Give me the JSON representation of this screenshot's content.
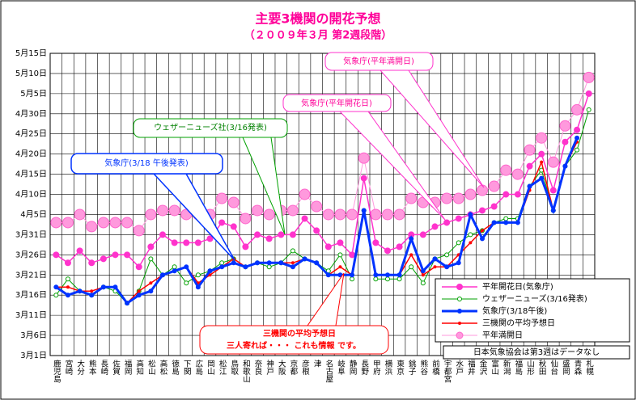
{
  "chart_data": {
    "type": "line",
    "title": "主要3機関の開花予想",
    "subtitle": "（２００９年３月 第2週段階）",
    "categories": [
      "鹿児島",
      "宮崎",
      "大分",
      "熊本",
      "長崎",
      "佐賀",
      "福岡",
      "高知",
      "松山",
      "高松",
      "徳島",
      "下関",
      "広島",
      "岡山",
      "松江",
      "鳥取",
      "和歌山",
      "奈良",
      "神戸",
      "大阪",
      "京都",
      "彦根",
      "津",
      "名古屋",
      "岐阜",
      "静岡",
      "長野",
      "甲府",
      "横浜",
      "東京",
      "銚子",
      "熊谷",
      "前橋",
      "宇都宮",
      "水戸",
      "福井",
      "金沢",
      "富山",
      "新潟",
      "福島",
      "山形",
      "秋田",
      "仙台",
      "盛岡",
      "青森",
      "札幌"
    ],
    "series": [
      {
        "name": "平年開花日(気象庁)",
        "color": "#ff33cc",
        "values": [
          85,
          83,
          86,
          83,
          84,
          85,
          85,
          82,
          87,
          90,
          88,
          88,
          88,
          89,
          93,
          92,
          87,
          90,
          89,
          90,
          90,
          94,
          91,
          87,
          88,
          85,
          104,
          88,
          86,
          87,
          90,
          90,
          92,
          93,
          94,
          95,
          96,
          97,
          100,
          100,
          107,
          110,
          101,
          113,
          116,
          125
        ]
      },
      {
        "name": "ウェザーニューズ(3/16発表)",
        "color": "#00a000",
        "values": [
          75,
          79,
          76,
          75,
          77,
          76,
          73,
          76,
          84,
          80,
          82,
          78,
          80,
          81,
          83,
          84,
          82,
          83,
          82,
          83,
          86,
          84,
          83,
          81,
          85,
          79,
          96,
          79,
          79,
          79,
          82,
          78,
          84,
          85,
          88,
          90,
          91,
          93,
          94,
          94,
          102,
          106,
          96,
          107,
          111,
          121
        ]
      },
      {
        "name": "気象庁(3/18午後)",
        "color": "#0033ff",
        "values": [
          77,
          75,
          76,
          75,
          77,
          77,
          73,
          75,
          76,
          80,
          81,
          82,
          77,
          81,
          82,
          83,
          82,
          83,
          83,
          83,
          82,
          84,
          83,
          80,
          80,
          80,
          96,
          80,
          80,
          80,
          89,
          81,
          84,
          82,
          83,
          95,
          89,
          93,
          93,
          93,
          102,
          104,
          96,
          107,
          114,
          null
        ]
      },
      {
        "name": "三機関の平均予想日",
        "color": "#ff0000",
        "values": [
          77,
          77,
          76,
          76,
          77,
          77,
          73,
          76,
          78,
          80,
          81,
          82,
          78,
          80,
          82,
          84,
          82,
          83,
          83,
          83,
          83,
          84,
          83,
          80,
          82,
          80,
          96,
          80,
          80,
          80,
          85,
          80,
          82,
          82,
          85,
          88,
          91,
          93,
          93,
          93,
          101,
          108,
          96,
          107,
          113,
          null
        ]
      },
      {
        "name": "平年満開日",
        "color": "#ff99dd",
        "values": [
          93,
          93,
          95,
          92,
          93,
          93,
          93,
          91,
          95,
          96,
          96,
          95,
          95,
          95,
          99,
          98,
          94,
          96,
          95,
          96,
          96,
          100,
          97,
          95,
          95,
          95,
          109,
          95,
          95,
          95,
          99,
          98,
          98,
          99,
          99,
          100,
          101,
          102,
          106,
          105,
          111,
          114,
          108,
          117,
          121,
          129
        ]
      }
    ],
    "ylim": [
      60,
      135
    ],
    "yticks": [
      {
        "value": 60,
        "label": "3月1日"
      },
      {
        "value": 65,
        "label": "3月6日"
      },
      {
        "value": 70,
        "label": "3月11日"
      },
      {
        "value": 75,
        "label": "3月16日"
      },
      {
        "value": 80,
        "label": "3月21日"
      },
      {
        "value": 85,
        "label": "3月26日"
      },
      {
        "value": 90,
        "label": "3月31日"
      },
      {
        "value": 95,
        "label": "4月5日"
      },
      {
        "value": 100,
        "label": "4月10日"
      },
      {
        "value": 105,
        "label": "4月15日"
      },
      {
        "value": 110,
        "label": "4月20日"
      },
      {
        "value": 115,
        "label": "4月25日"
      },
      {
        "value": 120,
        "label": "4月30日"
      },
      {
        "value": 125,
        "label": "5月5日"
      },
      {
        "value": 130,
        "label": "5月10日"
      },
      {
        "value": 135,
        "label": "5月15日"
      }
    ],
    "grid": true,
    "legend": "bottom-right",
    "annotations": [
      "気象庁(平年満開日)",
      "気象庁(平年開花日)",
      "ウェザーニューズ社(3/16発表)",
      "気象庁(3/18 午後発表)",
      "三機関の平均予想日",
      "三人寄れば・・・ これも情報 です。",
      "日本気象協会は第3週はデータなし"
    ]
  }
}
